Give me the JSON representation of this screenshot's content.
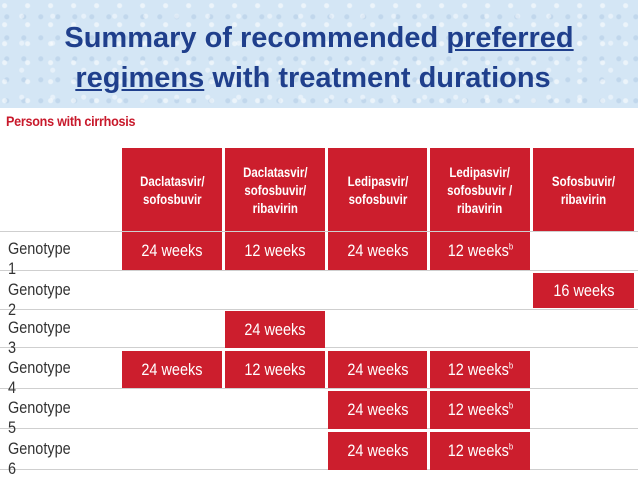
{
  "title": {
    "line1_plain": "Summary of recommended ",
    "line1_underlined": "preferred",
    "line2_underlined": "regimens",
    "line2_plain": " with treatment durations"
  },
  "section_label": "Persons with cirrhosis",
  "columns": [
    {
      "line1": "Daclatasvir/",
      "line2": "sofosbuvir",
      "line3": ""
    },
    {
      "line1": "Daclatasvir/",
      "line2": "sofosbuvir/",
      "line3": "ribavirin"
    },
    {
      "line1": "Ledipasvir/",
      "line2": "sofosbuvir",
      "line3": ""
    },
    {
      "line1": "Ledipasvir/",
      "line2": "sofosbuvir /",
      "line3": "ribavirin"
    },
    {
      "line1": "Sofosbuvir/",
      "line2": "ribavirin",
      "line3": ""
    }
  ],
  "rows": [
    {
      "label": "Genotype 1",
      "cells": [
        {
          "text": "24 weeks",
          "sup": ""
        },
        {
          "text": "12 weeks",
          "sup": ""
        },
        {
          "text": "24 weeks",
          "sup": ""
        },
        {
          "text": "12 weeks",
          "sup": "b"
        },
        null
      ]
    },
    {
      "label": "Genotype 2",
      "cells": [
        null,
        null,
        null,
        null,
        {
          "text": "16 weeks",
          "sup": ""
        }
      ]
    },
    {
      "label": "Genotype 3",
      "cells": [
        null,
        {
          "text": "24 weeks",
          "sup": ""
        },
        null,
        null,
        null
      ]
    },
    {
      "label": "Genotype 4",
      "cells": [
        {
          "text": "24 weeks",
          "sup": ""
        },
        {
          "text": "12 weeks",
          "sup": ""
        },
        {
          "text": "24 weeks",
          "sup": ""
        },
        {
          "text": "12 weeks",
          "sup": "b"
        },
        null
      ]
    },
    {
      "label": "Genotype 5",
      "cells": [
        null,
        null,
        {
          "text": "24 weeks",
          "sup": ""
        },
        {
          "text": "12 weeks",
          "sup": "b"
        },
        null
      ]
    },
    {
      "label": "Genotype 6",
      "cells": [
        null,
        null,
        {
          "text": "24 weeks",
          "sup": ""
        },
        {
          "text": "12 weeks",
          "sup": "b"
        },
        null
      ]
    }
  ],
  "colors": {
    "accent_red": "#cc1e2d",
    "title_blue": "#1f3f8c",
    "band_blue": "#d4e6f5"
  }
}
